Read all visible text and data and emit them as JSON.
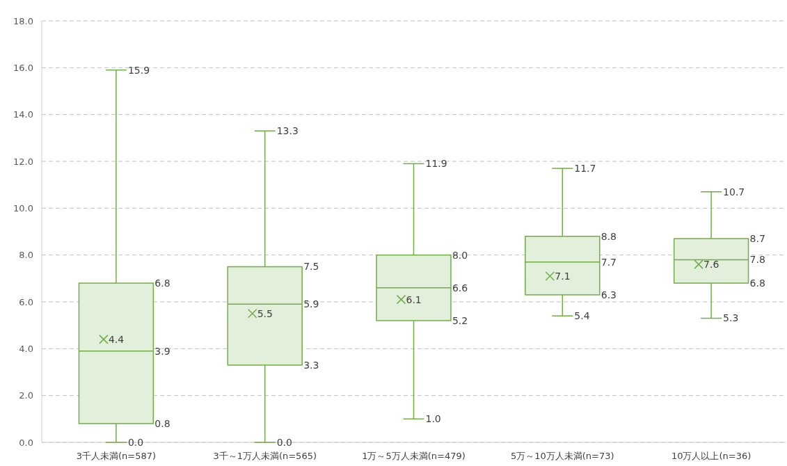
{
  "chart_data": {
    "type": "box",
    "categories": [
      "3千人未満(n=587)",
      "3千～1万人未満(n=565)",
      "1万～5万人未満(n=479)",
      "5万～10万人未満(n=73)",
      "10万人以上(n=36)"
    ],
    "boxes": [
      {
        "low": 0.0,
        "q1": 0.8,
        "median": 3.9,
        "q3": 6.8,
        "high": 15.9,
        "mean": 4.4
      },
      {
        "low": 0.0,
        "q1": 3.3,
        "median": 5.9,
        "q3": 7.5,
        "high": 13.3,
        "mean": 5.5
      },
      {
        "low": 1.0,
        "q1": 5.2,
        "median": 6.6,
        "q3": 8.0,
        "high": 11.9,
        "mean": 6.1
      },
      {
        "low": 5.4,
        "q1": 6.3,
        "median": 7.7,
        "q3": 8.8,
        "high": 11.7,
        "mean": 7.1
      },
      {
        "low": 5.3,
        "q1": 6.8,
        "median": 7.8,
        "q3": 8.7,
        "high": 10.7,
        "mean": 7.6
      }
    ],
    "color": "#70ad47",
    "ylim": [
      0,
      18
    ],
    "yticks": [
      {
        "value": 0,
        "label": "0.0"
      },
      {
        "value": 2,
        "label": "2.0"
      },
      {
        "value": 4,
        "label": "4.0"
      },
      {
        "value": 6,
        "label": "6.0"
      },
      {
        "value": 8,
        "label": "8.0"
      },
      {
        "value": 10,
        "label": "10.0"
      },
      {
        "value": 12,
        "label": "12.0"
      },
      {
        "value": 14,
        "label": "14.0"
      },
      {
        "value": 16,
        "label": "16.0"
      },
      {
        "value": 18,
        "label": "18.0"
      }
    ],
    "grid": "y",
    "marker": "cross",
    "annotations": [
      "15.9",
      "6.8",
      "3.9",
      "0.8",
      "0.0",
      "4.4",
      "13.3",
      "7.5",
      "5.9",
      "3.3",
      "0.0",
      "5.5",
      "11.9",
      "8.0",
      "6.6",
      "5.2",
      "1.0",
      "6.1",
      "11.7",
      "8.8",
      "7.7",
      "6.3",
      "5.4",
      "7.1",
      "10.7",
      "8.7",
      "7.8",
      "6.8",
      "5.3",
      "7.6"
    ]
  }
}
